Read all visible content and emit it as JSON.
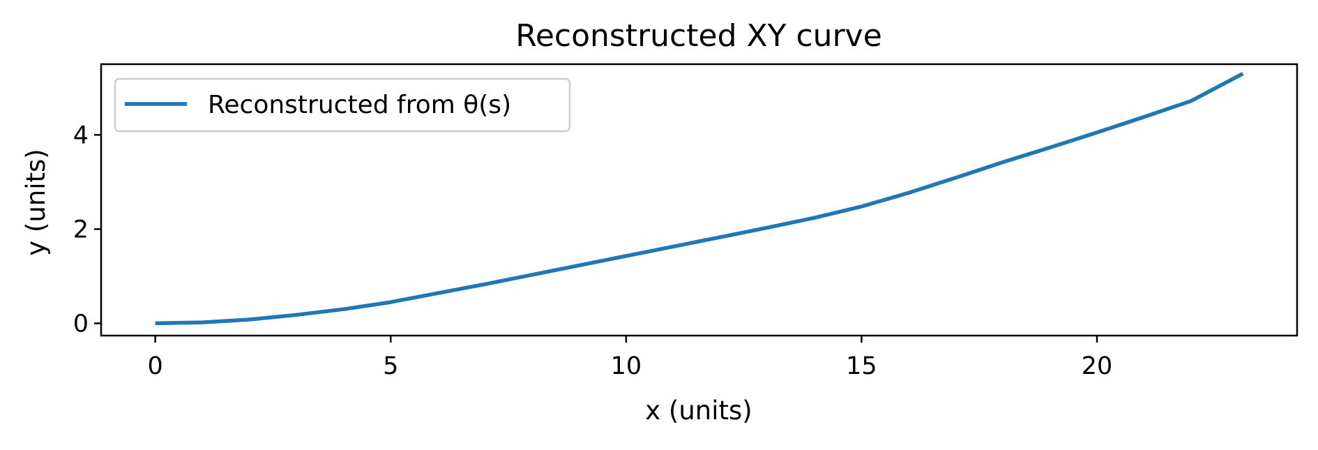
{
  "chart_data": {
    "type": "line",
    "title": "Reconstructed XY curve",
    "xlabel": "x (units)",
    "ylabel": "y (units)",
    "xlim": [
      -1.15,
      24.25
    ],
    "ylim": [
      -0.26,
      5.5
    ],
    "xticks": [
      0,
      5,
      10,
      15,
      20
    ],
    "yticks": [
      0,
      2,
      4
    ],
    "grid": false,
    "legend": {
      "placement": "top-left"
    },
    "series": [
      {
        "name": "Reconstructed from θ(s)",
        "color": "#1f77b4",
        "x": [
          0,
          1,
          2,
          3,
          4,
          5,
          6,
          7,
          8,
          9,
          10,
          11,
          12,
          13,
          14,
          15,
          16,
          17,
          18,
          19,
          20,
          21,
          22,
          23.1
        ],
        "y": [
          0,
          0.02,
          0.08,
          0.18,
          0.3,
          0.45,
          0.64,
          0.83,
          1.03,
          1.23,
          1.43,
          1.63,
          1.83,
          2.03,
          2.24,
          2.48,
          2.77,
          3.09,
          3.42,
          3.73,
          4.05,
          4.38,
          4.72,
          5.3
        ]
      }
    ]
  }
}
